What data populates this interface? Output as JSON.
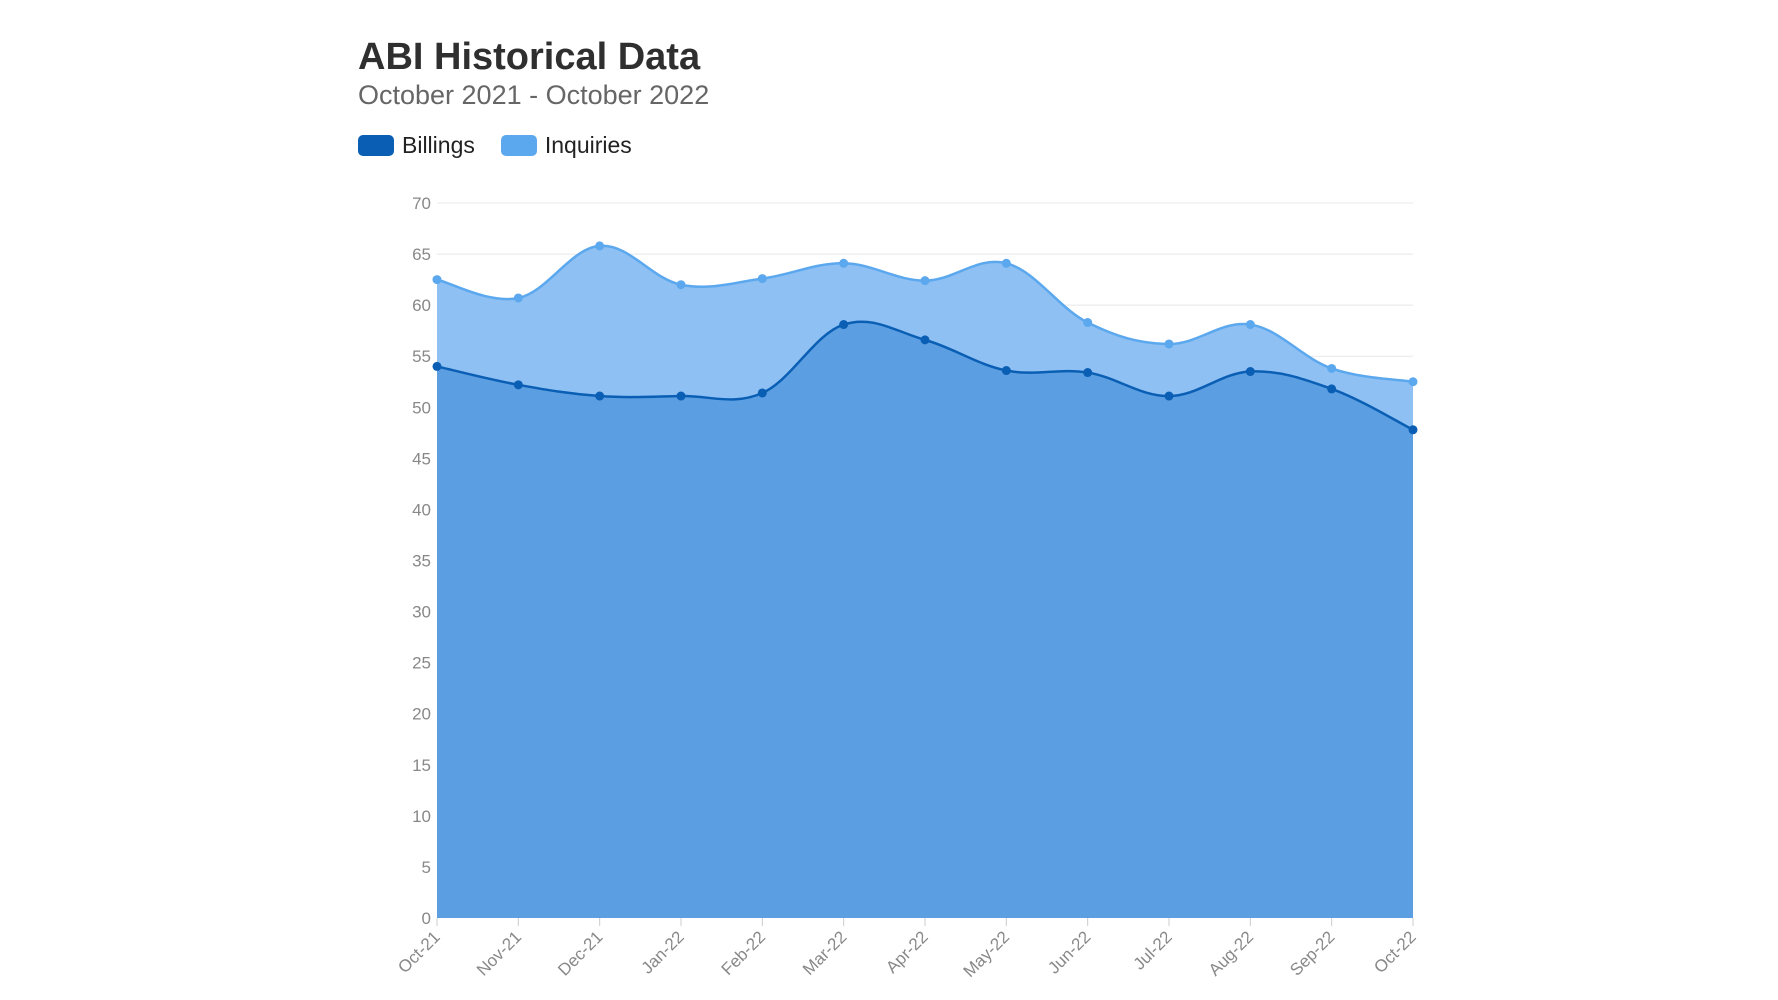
{
  "colors": {
    "billings": "#0a5fb4",
    "inquiries": "#5ba8ee",
    "billings_fill": "#5b9fe2",
    "inquiries_fill": "#8fc0f3",
    "grid": "#e8e8e8",
    "axis": "#cccccc"
  },
  "chart_data": {
    "type": "area",
    "title": "ABI Historical Data",
    "subtitle": "October 2021 - October 2022",
    "xlabel": "",
    "ylabel": "",
    "categories": [
      "Oct-21",
      "Nov-21",
      "Dec-21",
      "Jan-22",
      "Feb-22",
      "Mar-22",
      "Apr-22",
      "May-22",
      "Jun-22",
      "Jul-22",
      "Aug-22",
      "Sep-22",
      "Oct-22"
    ],
    "ylim": [
      0,
      70
    ],
    "yticks": [
      0,
      5,
      10,
      15,
      20,
      25,
      30,
      35,
      40,
      45,
      50,
      55,
      60,
      65,
      70
    ],
    "grid": true,
    "legend_position": "top-left",
    "series": [
      {
        "name": "Billings",
        "values": [
          54.0,
          52.2,
          51.1,
          51.1,
          51.4,
          58.1,
          56.6,
          53.6,
          53.4,
          51.1,
          53.5,
          51.8,
          47.8
        ]
      },
      {
        "name": "Inquiries",
        "values": [
          62.5,
          60.7,
          65.8,
          62.0,
          62.6,
          64.1,
          62.4,
          64.1,
          58.3,
          56.2,
          58.1,
          53.8,
          52.5
        ]
      }
    ]
  }
}
